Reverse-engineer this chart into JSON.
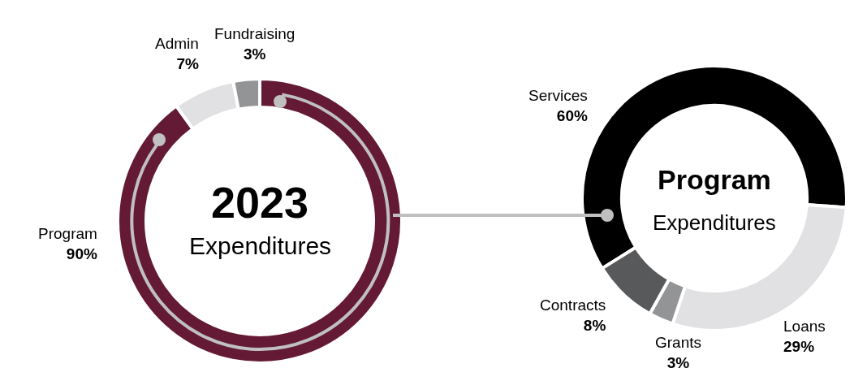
{
  "chart_data": [
    {
      "type": "donut",
      "title": "2023",
      "subtitle": "Expenditures",
      "categories": [
        "Program",
        "Admin",
        "Fundraising"
      ],
      "values": [
        90,
        7,
        3
      ],
      "value_labels": [
        "90%",
        "7%",
        "3%"
      ],
      "colors": [
        "#641a35",
        "#e1e1e3",
        "#939496"
      ]
    },
    {
      "type": "donut",
      "title": "Program",
      "subtitle": "Expenditures",
      "categories": [
        "Services",
        "Loans",
        "Grants",
        "Contracts"
      ],
      "values": [
        60,
        29,
        3,
        8
      ],
      "value_labels": [
        "60%",
        "29%",
        "3%",
        "8%"
      ],
      "colors": [
        "#000000",
        "#e1e1e3",
        "#939496",
        "#58595b"
      ]
    }
  ]
}
